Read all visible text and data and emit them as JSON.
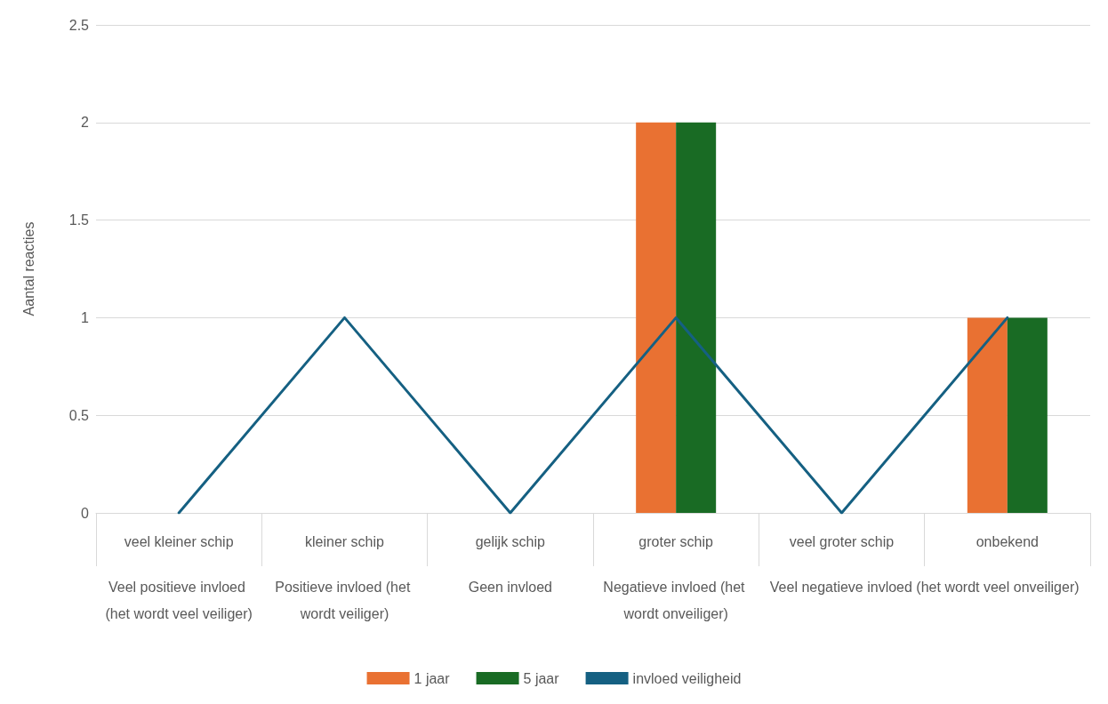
{
  "chart_data": {
    "type": "bar",
    "ylabel": "Aantal reacties",
    "categories": [
      "veel kleiner schip",
      "kleiner schip",
      "gelijk schip",
      "groter schip",
      "veel groter schip",
      "onbekend"
    ],
    "series": [
      {
        "name": "1 jaar",
        "color": "#e97132",
        "values": [
          0,
          0,
          0,
          2,
          0,
          1
        ]
      },
      {
        "name": "5 jaar",
        "color": "#196b24",
        "values": [
          0,
          0,
          0,
          2,
          0,
          1
        ]
      },
      {
        "name": "invloed veiligheid",
        "type": "line",
        "color": "#156082",
        "values": [
          0,
          1,
          0,
          1,
          0,
          1
        ]
      }
    ],
    "annotations": [
      "Veel positieve invloed (het wordt veel veiliger)",
      "Positieve invloed (het wordt veiliger)",
      "Geen invloed",
      "Negatieve invloed (het wordt onveiliger)",
      "Veel negatieve invloed (het wordt veel onveiliger)"
    ],
    "ylim": [
      0,
      2.5
    ],
    "yticks": [
      0,
      0.5,
      1,
      1.5,
      2,
      2.5
    ],
    "grid": "y",
    "legend": "bottom",
    "marker": "none",
    "line_style": "solid"
  }
}
